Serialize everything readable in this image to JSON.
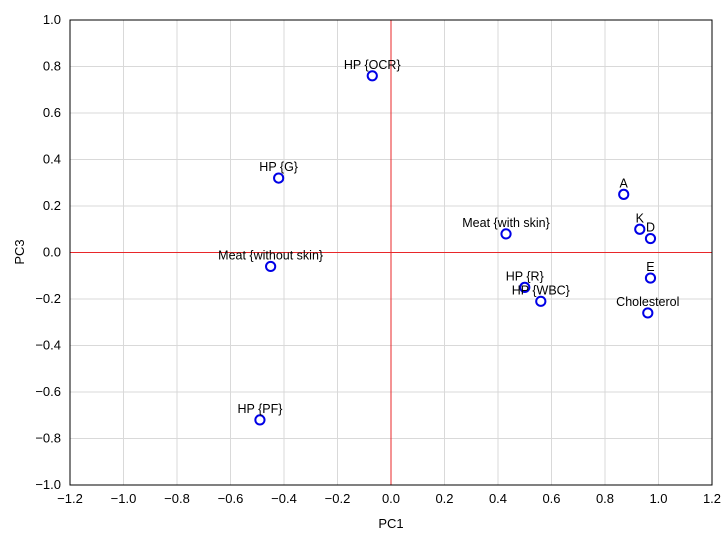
{
  "chart_data": {
    "type": "scatter",
    "title": "",
    "xlabel": "PC1",
    "ylabel": "PC3",
    "xlim": [
      -1.2,
      1.2
    ],
    "ylim": [
      -1.0,
      1.0
    ],
    "xticks": [
      -1.2,
      -1.0,
      -0.8,
      -0.6,
      -0.4,
      -0.2,
      0.0,
      0.2,
      0.4,
      0.6,
      0.8,
      1.0,
      1.2
    ],
    "yticks": [
      -1.0,
      -0.8,
      -0.6,
      -0.4,
      -0.2,
      0.0,
      0.2,
      0.4,
      0.6,
      0.8,
      1.0
    ],
    "grid": true,
    "reference_lines": {
      "x": 0.0,
      "y": 0.0,
      "color": "#e8272a"
    },
    "marker_color": "#0000e6",
    "points": [
      {
        "label": "HP {OCR}",
        "x": -0.07,
        "y": 0.76
      },
      {
        "label": "HP {G}",
        "x": -0.42,
        "y": 0.32
      },
      {
        "label": "Meat {without skin}",
        "x": -0.45,
        "y": -0.06
      },
      {
        "label": "HP {PF}",
        "x": -0.49,
        "y": -0.72
      },
      {
        "label": "Meat {with skin}",
        "x": 0.43,
        "y": 0.08
      },
      {
        "label": "HP {R}",
        "x": 0.5,
        "y": -0.15
      },
      {
        "label": "HP {WBC}",
        "x": 0.56,
        "y": -0.21
      },
      {
        "label": "A",
        "x": 0.87,
        "y": 0.25
      },
      {
        "label": "K",
        "x": 0.93,
        "y": 0.1
      },
      {
        "label": "D",
        "x": 0.97,
        "y": 0.06
      },
      {
        "label": "E",
        "x": 0.97,
        "y": -0.11
      },
      {
        "label": "Cholesterol",
        "x": 0.96,
        "y": -0.26
      }
    ]
  }
}
